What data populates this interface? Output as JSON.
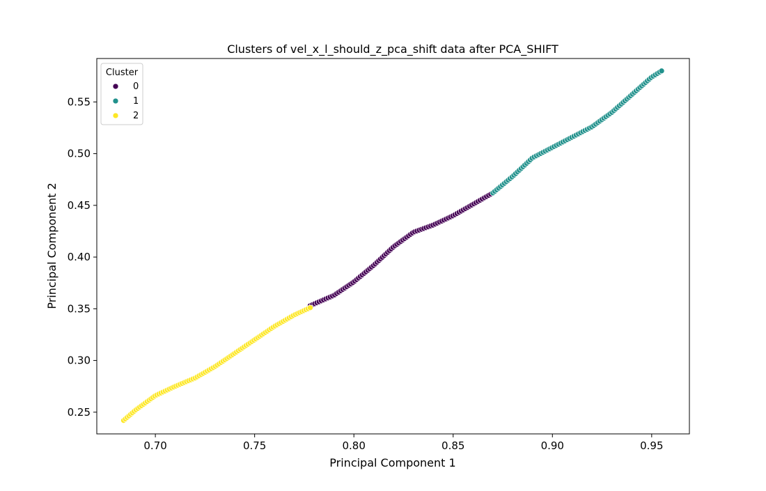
{
  "chart_data": {
    "type": "scatter",
    "title": "Clusters of vel_x_l_should_z_pca_shift data after PCA_SHIFT",
    "xlabel": "Principal Component 1",
    "ylabel": "Principal Component 2",
    "xlim": [
      0.6705,
      0.969
    ],
    "ylim": [
      0.229,
      0.592
    ],
    "xticks": [
      "0.70",
      "0.75",
      "0.80",
      "0.85",
      "0.90",
      "0.95"
    ],
    "yticks": [
      "0.25",
      "0.30",
      "0.35",
      "0.40",
      "0.45",
      "0.50",
      "0.55"
    ],
    "grid": false,
    "legend": {
      "title": "Cluster",
      "position": "upper-left",
      "entries": [
        "0",
        "1",
        "2"
      ]
    },
    "point_edge_color": "#ffffff",
    "series": [
      {
        "name": "0",
        "color": "#440154",
        "curve": [
          [
            0.778,
            0.353
          ],
          [
            0.79,
            0.363
          ],
          [
            0.8,
            0.376
          ],
          [
            0.81,
            0.392
          ],
          [
            0.82,
            0.41
          ],
          [
            0.83,
            0.424
          ],
          [
            0.84,
            0.431
          ],
          [
            0.85,
            0.44
          ],
          [
            0.86,
            0.451
          ],
          [
            0.87,
            0.462
          ]
        ],
        "count": 90
      },
      {
        "name": "1",
        "color": "#21918c",
        "curve": [
          [
            0.87,
            0.462
          ],
          [
            0.88,
            0.478
          ],
          [
            0.89,
            0.496
          ],
          [
            0.9,
            0.506
          ],
          [
            0.91,
            0.516
          ],
          [
            0.92,
            0.526
          ],
          [
            0.93,
            0.54
          ],
          [
            0.94,
            0.557
          ],
          [
            0.95,
            0.574
          ],
          [
            0.955,
            0.58
          ]
        ],
        "count": 85
      },
      {
        "name": "2",
        "color": "#fde725",
        "curve": [
          [
            0.684,
            0.242
          ],
          [
            0.69,
            0.252
          ],
          [
            0.7,
            0.266
          ],
          [
            0.71,
            0.275
          ],
          [
            0.72,
            0.283
          ],
          [
            0.73,
            0.294
          ],
          [
            0.74,
            0.307
          ],
          [
            0.75,
            0.32
          ],
          [
            0.76,
            0.333
          ],
          [
            0.77,
            0.344
          ],
          [
            0.778,
            0.351
          ]
        ],
        "count": 95
      }
    ]
  }
}
